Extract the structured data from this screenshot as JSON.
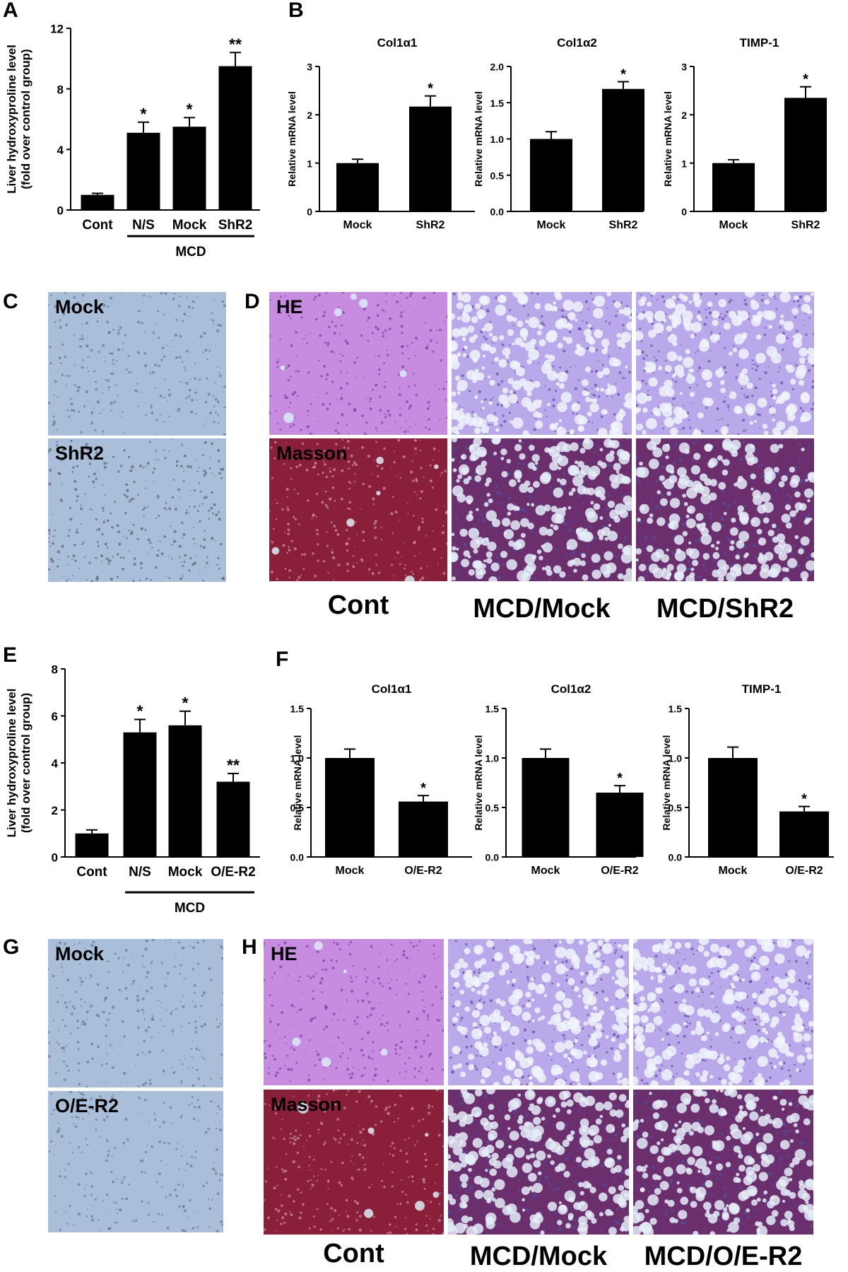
{
  "panels": {
    "A": "A",
    "B": "B",
    "C": "C",
    "D": "D",
    "E": "E",
    "F": "F",
    "G": "G",
    "H": "H"
  },
  "chart_data": [
    {
      "id": "A",
      "type": "bar",
      "categories": [
        "Cont",
        "N/S",
        "Mock",
        "ShR2"
      ],
      "values": [
        1.0,
        5.1,
        5.5,
        9.5
      ],
      "errors": [
        0.1,
        0.7,
        0.6,
        0.9
      ],
      "sig": [
        "",
        "*",
        "*",
        "**"
      ],
      "title": "",
      "ylabel": "Liver hydroxyproline level",
      "ylabel2": "(fold over control group)",
      "yticks": [
        "0",
        "4",
        "8",
        "12"
      ],
      "ylim": [
        0,
        12
      ],
      "group_label": "MCD",
      "group_span": [
        1,
        3
      ]
    },
    {
      "id": "B1",
      "type": "bar",
      "categories": [
        "Mock",
        "ShR2"
      ],
      "values": [
        1.0,
        2.17
      ],
      "errors": [
        0.08,
        0.22
      ],
      "sig": [
        "",
        "*"
      ],
      "title": "Col1α1",
      "ylabel": "Relative mRNA level",
      "yticks": [
        "0",
        "1",
        "2",
        "3"
      ],
      "ylim": [
        0,
        3
      ]
    },
    {
      "id": "B2",
      "type": "bar",
      "categories": [
        "Mock",
        "ShR2"
      ],
      "values": [
        1.0,
        1.69
      ],
      "errors": [
        0.1,
        0.1
      ],
      "sig": [
        "",
        "*"
      ],
      "title": "Col1α2",
      "ylabel": "Relative mRNA level",
      "yticks": [
        "0.0",
        "0.5",
        "1.0",
        "1.5",
        "2.0"
      ],
      "ylim": [
        0,
        2
      ]
    },
    {
      "id": "B3",
      "type": "bar",
      "categories": [
        "Mock",
        "ShR2"
      ],
      "values": [
        1.0,
        2.35
      ],
      "errors": [
        0.07,
        0.23
      ],
      "sig": [
        "",
        "*"
      ],
      "title": "TIMP-1",
      "ylabel": "Relative mRNA level",
      "yticks": [
        "0",
        "1",
        "2",
        "3"
      ],
      "ylim": [
        0,
        3
      ]
    },
    {
      "id": "E",
      "type": "bar",
      "categories": [
        "Cont",
        "N/S",
        "Mock",
        "O/E-R2"
      ],
      "values": [
        1.0,
        5.3,
        5.6,
        3.2
      ],
      "errors": [
        0.15,
        0.55,
        0.6,
        0.35
      ],
      "sig": [
        "",
        "*",
        "*",
        "**"
      ],
      "title": "",
      "ylabel": "Liver hydroxyproline level",
      "ylabel2": "(fold over control group)",
      "yticks": [
        "0",
        "2",
        "4",
        "6",
        "8"
      ],
      "ylim": [
        0,
        8
      ],
      "group_label": "MCD",
      "group_span": [
        1,
        3
      ]
    },
    {
      "id": "F1",
      "type": "bar",
      "categories": [
        "Mock",
        "O/E-R2"
      ],
      "values": [
        1.0,
        0.56
      ],
      "errors": [
        0.09,
        0.06
      ],
      "sig": [
        "",
        "*"
      ],
      "title": "Col1α1",
      "ylabel": "Relative mRNA level",
      "yticks": [
        "0.0",
        "0.5",
        "1.0",
        "1.5"
      ],
      "ylim": [
        0,
        1.5
      ]
    },
    {
      "id": "F2",
      "type": "bar",
      "categories": [
        "Mock",
        "O/E-R2"
      ],
      "values": [
        1.0,
        0.65
      ],
      "errors": [
        0.09,
        0.07
      ],
      "sig": [
        "",
        "*"
      ],
      "title": "Col1α2",
      "ylabel": "Relative mRNA level",
      "yticks": [
        "0.0",
        "0.5",
        "1.0",
        "1.5"
      ],
      "ylim": [
        0,
        1.5
      ]
    },
    {
      "id": "F3",
      "type": "bar",
      "categories": [
        "Mock",
        "O/E-R2"
      ],
      "values": [
        1.0,
        0.46
      ],
      "errors": [
        0.11,
        0.05
      ],
      "sig": [
        "",
        "*"
      ],
      "title": "TIMP-1",
      "ylabel": "Relative mRNA level",
      "yticks": [
        "0.0",
        "0.5",
        "1.0",
        "1.5"
      ],
      "ylim": [
        0,
        1.5
      ]
    }
  ],
  "micrographs": {
    "C": {
      "top_label": "Mock",
      "bottom_label": "ShR2"
    },
    "D": {
      "top_label": "HE",
      "bottom_label": "Masson",
      "captions": [
        "Cont",
        "MCD/Mock",
        "MCD/ShR2"
      ]
    },
    "G": {
      "top_label": "Mock",
      "bottom_label": "O/E-R2"
    },
    "H": {
      "top_label": "HE",
      "bottom_label": "Masson",
      "captions": [
        "Cont",
        "MCD/Mock",
        "MCD/O/E-R2"
      ]
    }
  },
  "colors": {
    "bar": "#000000",
    "ihc": "#a9bfd9",
    "he": "#c78be0",
    "he_mcd": "#b9a8ea",
    "masson_cont": "#8a1f3a",
    "masson_mcd": "#6b2f6e",
    "vessel": "#d9ecf7"
  }
}
